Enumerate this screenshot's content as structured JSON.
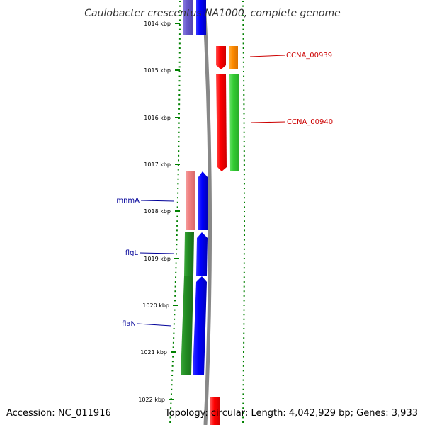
{
  "title": "Caulobacter crescentus NA1000, complete genome",
  "footer": {
    "accession": "Accession: NC_011916",
    "summary": "Topology: circular; Length: 4,042,929 bp; Genes: 3,933"
  },
  "kbp_labels": [
    "1014 kbp",
    "1015 kbp",
    "1016 kbp",
    "1017 kbp",
    "1018 kbp",
    "1019 kbp",
    "1020 kbp",
    "1021 kbp",
    "1022 kbp"
  ],
  "gene_labels": {
    "ccna_00939": "CCNA_00939",
    "ccna_00940": "CCNA_00940",
    "mnma": "mnmA",
    "flgl": "flgL",
    "flan": "flaN"
  },
  "colors": {
    "red": "#ff0000",
    "orange": "#ff8c00",
    "green": "#33cc33",
    "blue": "#0000ff",
    "pink": "#f08080",
    "dark_green": "#228b22",
    "purple": "#6a5acd",
    "backbone": "#888888",
    "tick": "#008000"
  }
}
